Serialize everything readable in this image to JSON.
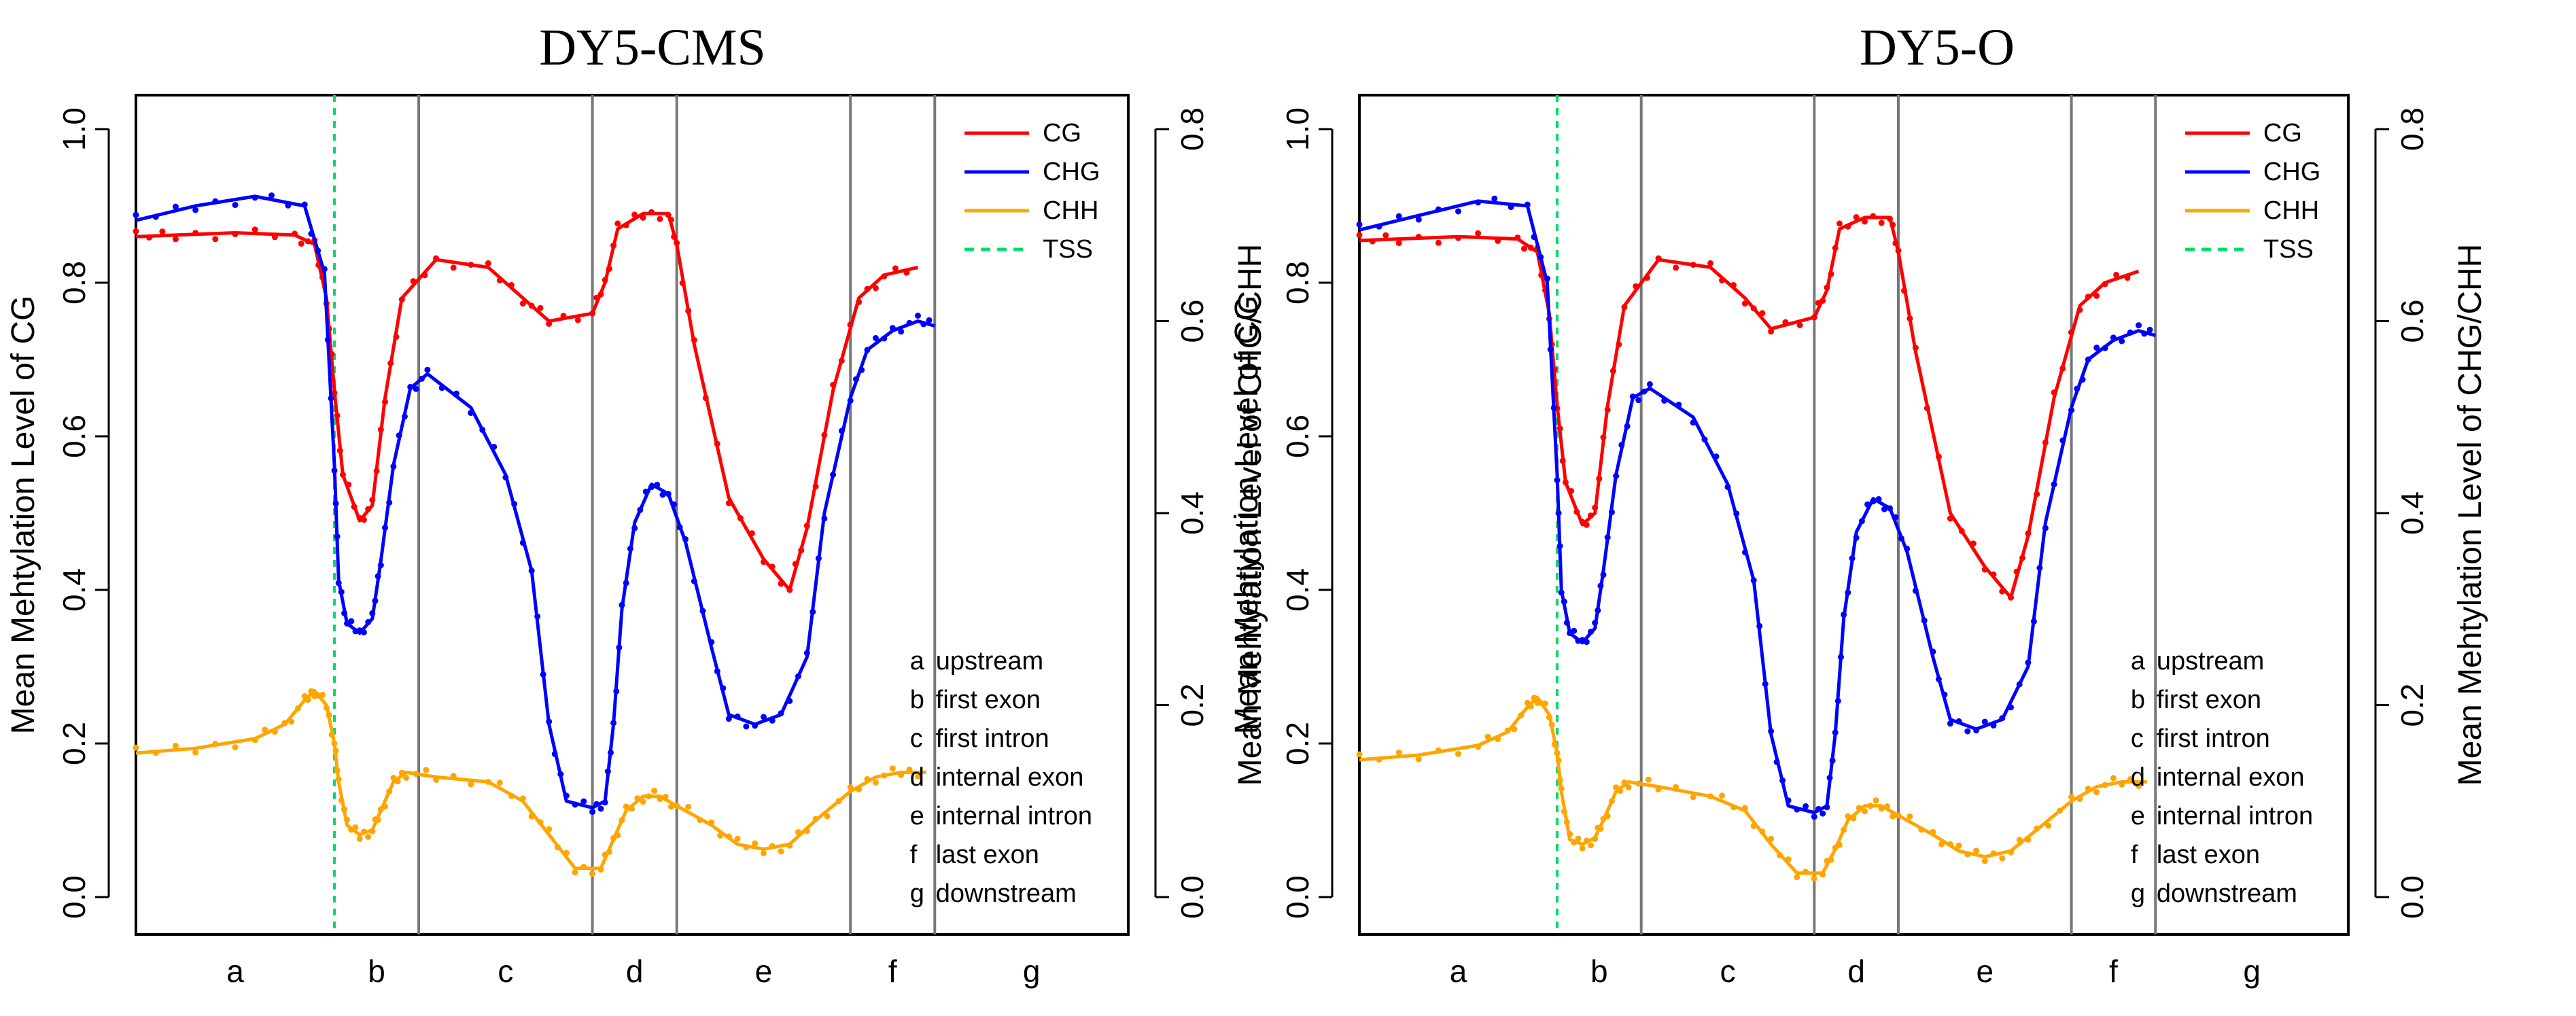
{
  "chart_data": [
    {
      "type": "line",
      "title": "DY5-CMS",
      "ylabel_left": "Mean Mehtylation Level of CG",
      "ylabel_right": "Mean Mehtylation Level of CHG/CHH",
      "ylim_left": [
        0,
        1.0
      ],
      "ylim_right": [
        0,
        0.8
      ],
      "yticks_left": [
        "0.0",
        "0.2",
        "0.4",
        "0.6",
        "0.8",
        "1.0"
      ],
      "yticks_right": [
        "0.0",
        "0.2",
        "0.4",
        "0.6",
        "0.8"
      ],
      "regions": [
        "a",
        "b",
        "c",
        "d",
        "e",
        "f",
        "g"
      ],
      "region_descriptions": [
        {
          "letter": "a",
          "text": "upstream"
        },
        {
          "letter": "b",
          "text": "first exon"
        },
        {
          "letter": "c",
          "text": "first intron"
        },
        {
          "letter": "d",
          "text": "internal exon"
        },
        {
          "letter": "e",
          "text": "internal intron"
        },
        {
          "letter": "f",
          "text": "last exon"
        },
        {
          "letter": "g",
          "text": "downstream"
        }
      ],
      "legend": [
        {
          "name": "CG",
          "color": "#ff0000",
          "style": "solid"
        },
        {
          "name": "CHG",
          "color": "#0000ff",
          "style": "solid"
        },
        {
          "name": "CHH",
          "color": "#ffa500",
          "style": "solid"
        },
        {
          "name": "TSS",
          "color": "#00dd66",
          "style": "dashed"
        }
      ],
      "series": [
        {
          "name": "CG",
          "axis": "left",
          "color": "#ff0000",
          "points": [
            [
              0,
              0.86
            ],
            [
              0.2,
              0.862
            ],
            [
              0.5,
              0.865
            ],
            [
              0.8,
              0.862
            ],
            [
              0.9,
              0.85
            ],
            [
              0.96,
              0.78
            ],
            [
              1.0,
              0.66
            ],
            [
              1.1,
              0.55
            ],
            [
              1.3,
              0.49
            ],
            [
              1.45,
              0.51
            ],
            [
              1.6,
              0.65
            ],
            [
              1.8,
              0.78
            ],
            [
              2.1,
              0.83
            ],
            [
              2.4,
              0.82
            ],
            [
              2.6,
              0.78
            ],
            [
              2.75,
              0.75
            ],
            [
              3.0,
              0.76
            ],
            [
              3.15,
              0.8
            ],
            [
              3.3,
              0.87
            ],
            [
              3.6,
              0.89
            ],
            [
              3.9,
              0.89
            ],
            [
              4.0,
              0.85
            ],
            [
              4.1,
              0.72
            ],
            [
              4.3,
              0.52
            ],
            [
              4.5,
              0.44
            ],
            [
              4.65,
              0.4
            ],
            [
              4.75,
              0.48
            ],
            [
              4.9,
              0.66
            ],
            [
              5.1,
              0.78
            ],
            [
              5.4,
              0.81
            ],
            [
              5.8,
              0.82
            ]
          ]
        },
        {
          "name": "CHG",
          "axis": "right",
          "color": "#0000ff",
          "points": [
            [
              0,
              0.705
            ],
            [
              0.3,
              0.72
            ],
            [
              0.6,
              0.73
            ],
            [
              0.85,
              0.72
            ],
            [
              0.95,
              0.65
            ],
            [
              1.0,
              0.45
            ],
            [
              1.05,
              0.33
            ],
            [
              1.15,
              0.285
            ],
            [
              1.3,
              0.275
            ],
            [
              1.45,
              0.29
            ],
            [
              1.55,
              0.35
            ],
            [
              1.7,
              0.45
            ],
            [
              1.9,
              0.53
            ],
            [
              2.05,
              0.545
            ],
            [
              2.3,
              0.51
            ],
            [
              2.5,
              0.44
            ],
            [
              2.65,
              0.34
            ],
            [
              2.75,
              0.18
            ],
            [
              2.85,
              0.1
            ],
            [
              3.0,
              0.093
            ],
            [
              3.15,
              0.1
            ],
            [
              3.25,
              0.18
            ],
            [
              3.35,
              0.3
            ],
            [
              3.5,
              0.39
            ],
            [
              3.7,
              0.43
            ],
            [
              3.9,
              0.42
            ],
            [
              4.05,
              0.37
            ],
            [
              4.2,
              0.26
            ],
            [
              4.3,
              0.19
            ],
            [
              4.45,
              0.18
            ],
            [
              4.6,
              0.19
            ],
            [
              4.75,
              0.25
            ],
            [
              4.85,
              0.4
            ],
            [
              5.0,
              0.52
            ],
            [
              5.2,
              0.57
            ],
            [
              5.5,
              0.59
            ],
            [
              5.8,
              0.6
            ],
            [
              6.0,
              0.595
            ]
          ]
        },
        {
          "name": "CHH",
          "axis": "right",
          "color": "#ffa500",
          "points": [
            [
              0,
              0.15
            ],
            [
              0.3,
              0.155
            ],
            [
              0.6,
              0.165
            ],
            [
              0.75,
              0.18
            ],
            [
              0.85,
              0.205
            ],
            [
              0.9,
              0.215
            ],
            [
              0.96,
              0.2
            ],
            [
              1.0,
              0.16
            ],
            [
              1.05,
              0.12
            ],
            [
              1.15,
              0.075
            ],
            [
              1.3,
              0.065
            ],
            [
              1.45,
              0.07
            ],
            [
              1.55,
              0.09
            ],
            [
              1.7,
              0.12
            ],
            [
              1.85,
              0.13
            ],
            [
              2.1,
              0.125
            ],
            [
              2.4,
              0.12
            ],
            [
              2.6,
              0.1
            ],
            [
              2.75,
              0.065
            ],
            [
              2.9,
              0.03
            ],
            [
              3.1,
              0.03
            ],
            [
              3.25,
              0.06
            ],
            [
              3.4,
              0.09
            ],
            [
              3.6,
              0.105
            ],
            [
              3.8,
              0.105
            ],
            [
              4.0,
              0.095
            ],
            [
              4.2,
              0.075
            ],
            [
              4.35,
              0.055
            ],
            [
              4.5,
              0.05
            ],
            [
              4.65,
              0.055
            ],
            [
              4.8,
              0.08
            ],
            [
              5.0,
              0.11
            ],
            [
              5.3,
              0.125
            ],
            [
              5.6,
              0.13
            ],
            [
              5.9,
              0.13
            ]
          ]
        }
      ]
    },
    {
      "type": "line",
      "title": "DY5-O",
      "ylabel_left": "Mean Mehtylation Level of CG",
      "ylabel_right": "Mean Mehtylation Level of CHG/CHH",
      "ylim_left": [
        0,
        1.0
      ],
      "ylim_right": [
        0,
        0.8
      ],
      "yticks_left": [
        "0.0",
        "0.2",
        "0.4",
        "0.6",
        "0.8",
        "1.0"
      ],
      "yticks_right": [
        "0.0",
        "0.2",
        "0.4",
        "0.6",
        "0.8"
      ],
      "regions": [
        "a",
        "b",
        "c",
        "d",
        "e",
        "f",
        "g"
      ],
      "region_descriptions": [
        {
          "letter": "a",
          "text": "upstream"
        },
        {
          "letter": "b",
          "text": "first exon"
        },
        {
          "letter": "c",
          "text": "first intron"
        },
        {
          "letter": "d",
          "text": "internal exon"
        },
        {
          "letter": "e",
          "text": "internal intron"
        },
        {
          "letter": "f",
          "text": "last exon"
        },
        {
          "letter": "g",
          "text": "downstream"
        }
      ],
      "legend": [
        {
          "name": "CG",
          "color": "#ff0000",
          "style": "solid"
        },
        {
          "name": "CHG",
          "color": "#0000ff",
          "style": "solid"
        },
        {
          "name": "CHH",
          "color": "#ffa500",
          "style": "solid"
        },
        {
          "name": "TSS",
          "color": "#00dd66",
          "style": "dashed"
        }
      ],
      "series": [
        {
          "name": "CG",
          "axis": "left",
          "color": "#ff0000",
          "points": [
            [
              0,
              0.855
            ],
            [
              0.2,
              0.857
            ],
            [
              0.5,
              0.86
            ],
            [
              0.8,
              0.857
            ],
            [
              0.9,
              0.84
            ],
            [
              0.96,
              0.76
            ],
            [
              1.0,
              0.64
            ],
            [
              1.1,
              0.54
            ],
            [
              1.3,
              0.485
            ],
            [
              1.45,
              0.5
            ],
            [
              1.6,
              0.64
            ],
            [
              1.8,
              0.77
            ],
            [
              2.1,
              0.83
            ],
            [
              2.4,
              0.82
            ],
            [
              2.6,
              0.78
            ],
            [
              2.75,
              0.74
            ],
            [
              3.0,
              0.755
            ],
            [
              3.15,
              0.79
            ],
            [
              3.3,
              0.87
            ],
            [
              3.6,
              0.885
            ],
            [
              3.9,
              0.885
            ],
            [
              4.0,
              0.84
            ],
            [
              4.1,
              0.71
            ],
            [
              4.3,
              0.5
            ],
            [
              4.5,
              0.43
            ],
            [
              4.65,
              0.39
            ],
            [
              4.75,
              0.47
            ],
            [
              4.9,
              0.65
            ],
            [
              5.1,
              0.77
            ],
            [
              5.4,
              0.8
            ],
            [
              5.8,
              0.815
            ]
          ]
        },
        {
          "name": "CHG",
          "axis": "right",
          "color": "#0000ff",
          "points": [
            [
              0,
              0.695
            ],
            [
              0.3,
              0.71
            ],
            [
              0.6,
              0.725
            ],
            [
              0.85,
              0.72
            ],
            [
              0.95,
              0.64
            ],
            [
              1.0,
              0.44
            ],
            [
              1.05,
              0.32
            ],
            [
              1.15,
              0.275
            ],
            [
              1.3,
              0.265
            ],
            [
              1.45,
              0.28
            ],
            [
              1.55,
              0.34
            ],
            [
              1.7,
              0.44
            ],
            [
              1.9,
              0.52
            ],
            [
              2.05,
              0.53
            ],
            [
              2.3,
              0.5
            ],
            [
              2.5,
              0.43
            ],
            [
              2.65,
              0.33
            ],
            [
              2.75,
              0.17
            ],
            [
              2.85,
              0.095
            ],
            [
              3.0,
              0.088
            ],
            [
              3.15,
              0.095
            ],
            [
              3.25,
              0.17
            ],
            [
              3.35,
              0.29
            ],
            [
              3.5,
              0.38
            ],
            [
              3.7,
              0.415
            ],
            [
              3.9,
              0.405
            ],
            [
              4.05,
              0.36
            ],
            [
              4.2,
              0.25
            ],
            [
              4.3,
              0.185
            ],
            [
              4.45,
              0.175
            ],
            [
              4.6,
              0.185
            ],
            [
              4.75,
              0.24
            ],
            [
              4.85,
              0.39
            ],
            [
              5.0,
              0.51
            ],
            [
              5.2,
              0.56
            ],
            [
              5.5,
              0.58
            ],
            [
              5.8,
              0.59
            ],
            [
              6.0,
              0.585
            ]
          ]
        },
        {
          "name": "CHH",
          "axis": "right",
          "color": "#ffa500",
          "points": [
            [
              0,
              0.143
            ],
            [
              0.3,
              0.148
            ],
            [
              0.6,
              0.158
            ],
            [
              0.75,
              0.172
            ],
            [
              0.85,
              0.198
            ],
            [
              0.9,
              0.208
            ],
            [
              0.96,
              0.19
            ],
            [
              1.0,
              0.15
            ],
            [
              1.05,
              0.11
            ],
            [
              1.15,
              0.06
            ],
            [
              1.3,
              0.055
            ],
            [
              1.45,
              0.062
            ],
            [
              1.55,
              0.08
            ],
            [
              1.7,
              0.11
            ],
            [
              1.85,
              0.12
            ],
            [
              2.1,
              0.115
            ],
            [
              2.4,
              0.105
            ],
            [
              2.6,
              0.09
            ],
            [
              2.75,
              0.055
            ],
            [
              2.9,
              0.025
            ],
            [
              3.1,
              0.025
            ],
            [
              3.25,
              0.05
            ],
            [
              3.4,
              0.08
            ],
            [
              3.6,
              0.095
            ],
            [
              3.8,
              0.095
            ],
            [
              4.0,
              0.085
            ],
            [
              4.2,
              0.065
            ],
            [
              4.35,
              0.048
            ],
            [
              4.5,
              0.042
            ],
            [
              4.65,
              0.048
            ],
            [
              4.8,
              0.07
            ],
            [
              5.0,
              0.1
            ],
            [
              5.3,
              0.115
            ],
            [
              5.6,
              0.12
            ],
            [
              5.9,
              0.12
            ]
          ]
        }
      ]
    }
  ]
}
